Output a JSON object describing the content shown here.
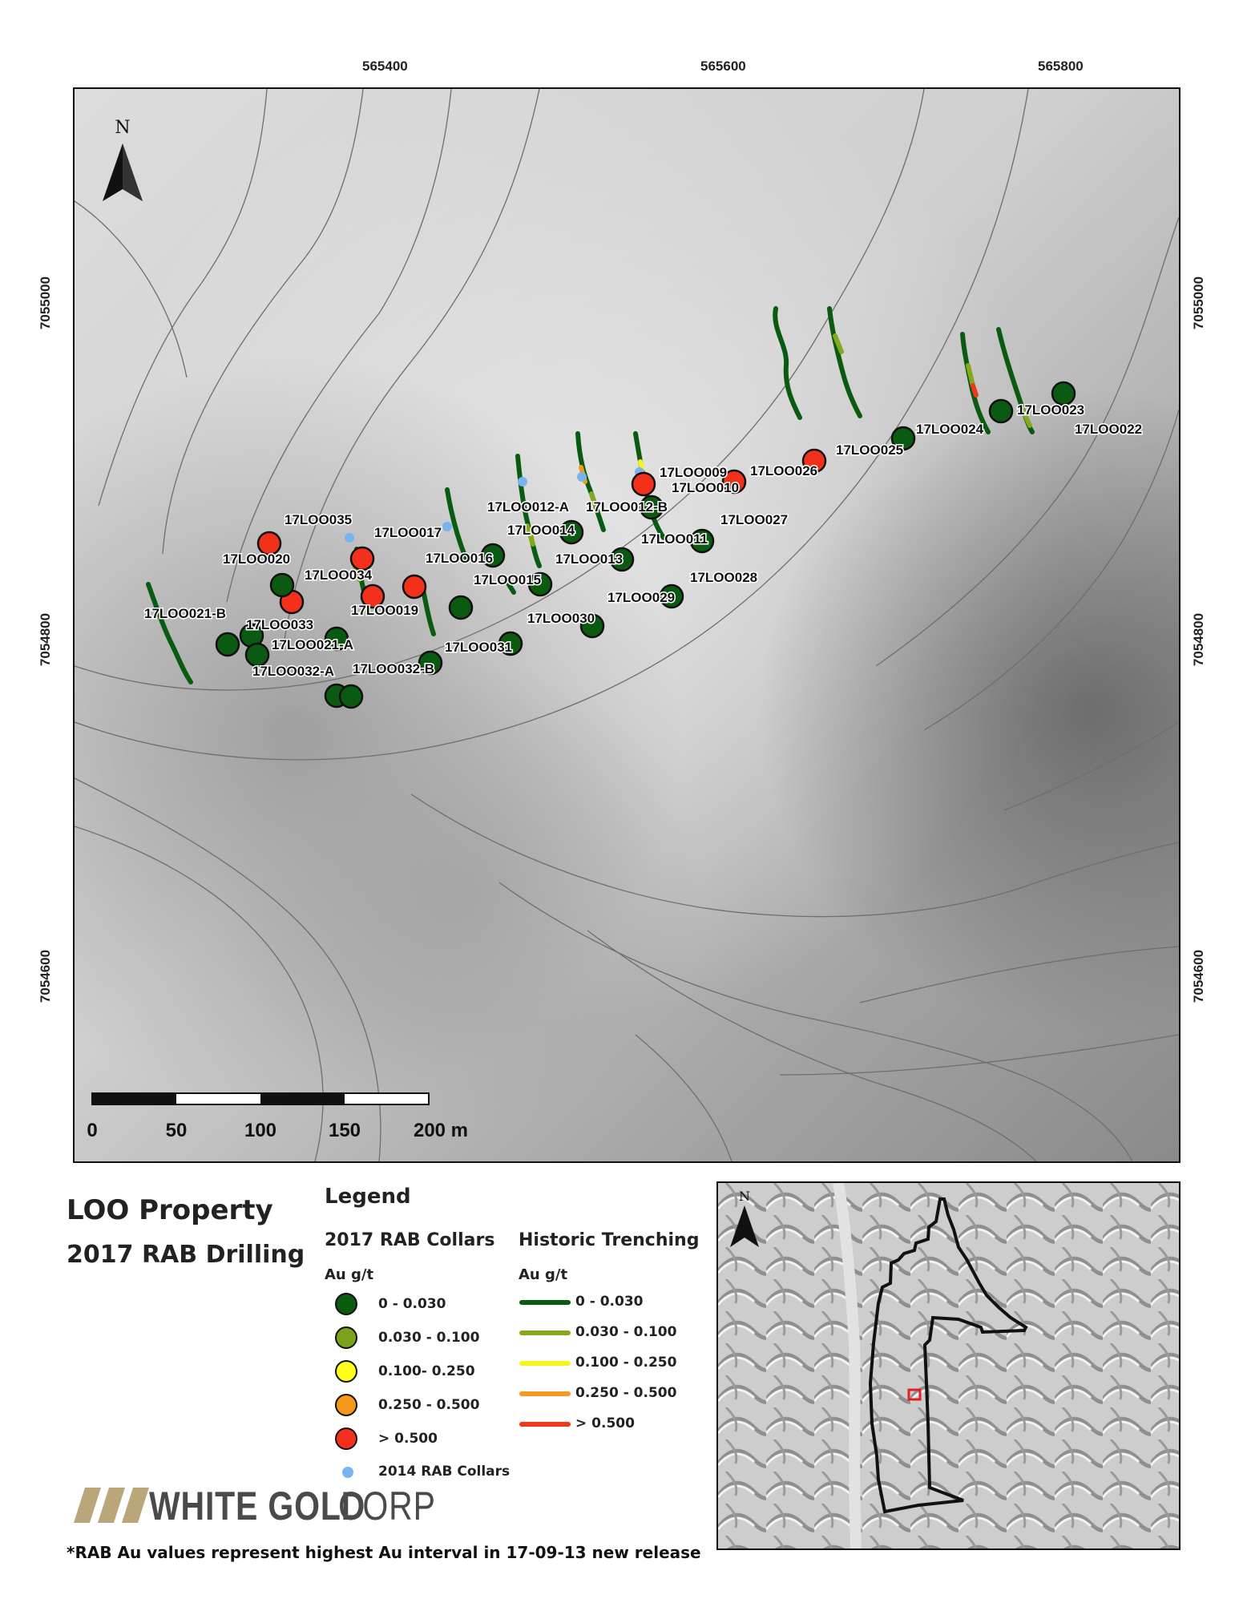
{
  "axes": {
    "top": [
      "565400",
      "565600",
      "565800"
    ],
    "left": [
      "7055000",
      "7054800",
      "7054600"
    ],
    "right": [
      "7055000",
      "7054800",
      "7054600"
    ]
  },
  "north_label": "N",
  "scale_bar": {
    "labels": [
      "0",
      "50",
      "100",
      "150",
      "200 m"
    ]
  },
  "title": {
    "line1": "LOO Property",
    "line2": "2017 RAB Drilling"
  },
  "legend": {
    "heading": "Legend",
    "collars": {
      "heading": "2017 RAB Collars",
      "unit": "Au g/t",
      "items": [
        {
          "label": "0 - 0.030",
          "color": "#0b5a12"
        },
        {
          "label": "0.030 - 0.100",
          "color": "#7aa21a"
        },
        {
          "label": "0.100- 0.250",
          "color": "#ffff1a"
        },
        {
          "label": "0.250 - 0.500",
          "color": "#f7971a"
        },
        {
          "label": "> 0.500",
          "color": "#f3301c"
        }
      ],
      "rab2014": {
        "label": "2014 RAB Collars",
        "color": "#7ab4f0"
      }
    },
    "trenching": {
      "heading": "Historic Trenching",
      "unit": "Au g/t",
      "items": [
        {
          "label": "0 - 0.030",
          "color": "#0b5a12"
        },
        {
          "label": "0.030 - 0.100",
          "color": "#86a81e"
        },
        {
          "label": "0.100 - 0.250",
          "color": "#f6f61e"
        },
        {
          "label": "0.250 - 0.500",
          "color": "#f49a1e"
        },
        {
          "label": "> 0.500",
          "color": "#ee3a1c"
        }
      ]
    }
  },
  "logo": {
    "text1": "WHITE GOLD",
    "text2": " CORP",
    "slash_color": "#b9a77a",
    "text_color": "#4a4a4a"
  },
  "footnote": "*RAB Au values represent highest Au interval in 17-09-13 new release",
  "drillholes": [
    {
      "name": "17LOO023",
      "color": "#0b5a12"
    },
    {
      "name": "17LOO022",
      "color": "#0b5a12"
    },
    {
      "name": "17LOO024",
      "color": "#0b5a12"
    },
    {
      "name": "17LOO025",
      "color": "#0b5a12"
    },
    {
      "name": "17LOO026",
      "color": "#f3301c"
    },
    {
      "name": "17LOO009",
      "color": "#0b5a12"
    },
    {
      "name": "17LOO010",
      "color": "#f3301c"
    },
    {
      "name": "17LOO027",
      "color": "#0b5a12"
    },
    {
      "name": "17LOO012-A",
      "color": "#0b5a12"
    },
    {
      "name": "17LOO012-B",
      "color": "#0b5a12"
    },
    {
      "name": "17LOO011",
      "color": "#0b5a12"
    },
    {
      "name": "17LOO014",
      "color": "#0b5a12"
    },
    {
      "name": "17LOO013",
      "color": "#0b5a12"
    },
    {
      "name": "17LOO028",
      "color": "#0b5a12"
    },
    {
      "name": "17LOO029",
      "color": "#0b5a12"
    },
    {
      "name": "17LOO030",
      "color": "#0b5a12"
    },
    {
      "name": "17LOO035",
      "color": "#0b5a12"
    },
    {
      "name": "17LOO017",
      "color": "#0b5a12"
    },
    {
      "name": "17LOO016",
      "color": "#0b5a12"
    },
    {
      "name": "17LOO015",
      "color": "#0b5a12"
    },
    {
      "name": "17LOO020",
      "color": "#f3301c"
    },
    {
      "name": "17LOO034",
      "color": "#f3301c"
    },
    {
      "name": "17LOO019",
      "color": "#f3301c"
    },
    {
      "name": "17LOO021-B",
      "color": "#0b5a12"
    },
    {
      "name": "17LOO033",
      "color": "#f3301c"
    },
    {
      "name": "17LOO021-A",
      "color": "#0b5a12"
    },
    {
      "name": "17LOO031",
      "color": "#0b5a12"
    },
    {
      "name": "17LOO032-A",
      "color": "#0b5a12"
    },
    {
      "name": "17LOO032-B",
      "color": "#0b5a12"
    }
  ],
  "other_collars": [
    {
      "color": "#f3301c"
    },
    {
      "color": "#0b5a12"
    },
    {
      "color": "#0b5a12"
    },
    {
      "color": "#0b5a12"
    },
    {
      "color": "#0b5a12"
    },
    {
      "color": "#0b5a12"
    },
    {
      "color": "#0b5a12"
    }
  ],
  "inset": {
    "north_label": "N",
    "boundary_color": "#111111",
    "site_color": "#e02020"
  }
}
